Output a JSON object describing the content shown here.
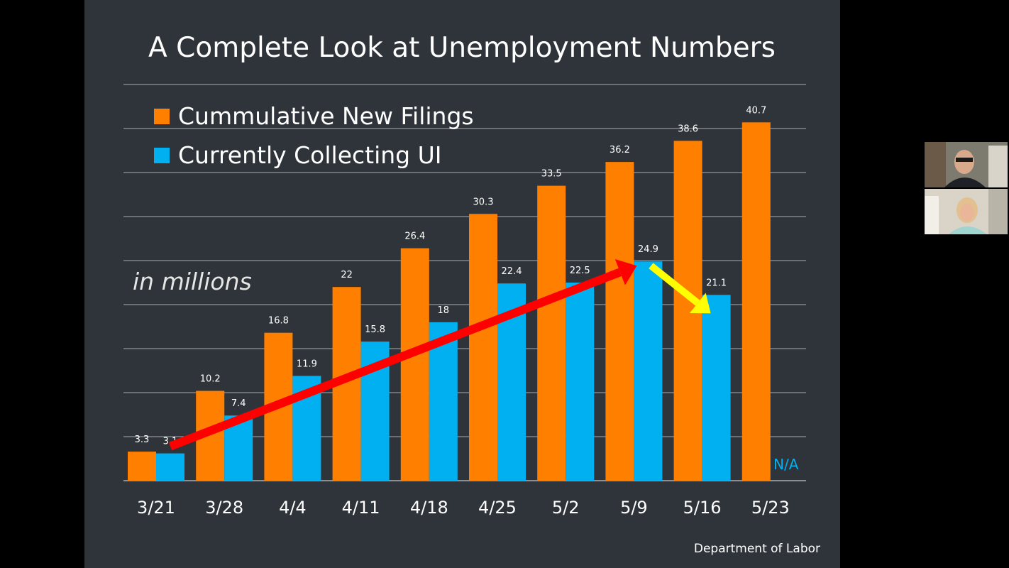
{
  "slide": {
    "source": "Department of Labor",
    "units_label": "in millions"
  },
  "colors": {
    "background": "#2e3439",
    "orange": "#ff7f00",
    "blue": "#00b0f0",
    "red_arrow": "#ff0000",
    "yellow_arrow": "#ffff00",
    "gridline": "#a9adb0",
    "text": "#ffffff"
  },
  "chart_data": {
    "type": "bar",
    "title": "A Complete Look at Unemployment Numbers",
    "xlabel": "",
    "ylabel": "",
    "ylim": [
      0,
      45
    ],
    "grid": true,
    "legend_position": "top-left",
    "categories": [
      "3/21",
      "3/28",
      "4/4",
      "4/11",
      "4/18",
      "4/25",
      "5/2",
      "5/9",
      "5/16",
      "5/23"
    ],
    "series": [
      {
        "name": "Cummulative New Filings",
        "color": "#ff7f00",
        "values": [
          3.3,
          10.2,
          16.8,
          22,
          26.4,
          30.3,
          33.5,
          36.2,
          38.6,
          40.7
        ],
        "labels": [
          "3.3",
          "10.2",
          "16.8",
          "22",
          "26.4",
          "30.3",
          "33.5",
          "36.2",
          "38.6",
          "40.7"
        ]
      },
      {
        "name": "Currently Collecting UI",
        "color": "#00b0f0",
        "values": [
          3.1,
          7.4,
          11.9,
          15.8,
          18,
          22.4,
          22.5,
          24.9,
          21.1,
          null
        ],
        "labels": [
          "3.1",
          "7.4",
          "11.9",
          "15.8",
          "18",
          "22.4",
          "22.5",
          "24.9",
          "21.1",
          "N/A"
        ]
      }
    ],
    "annotations": [
      {
        "type": "arrow",
        "color": "red",
        "from": {
          "category": "3/21",
          "value": 3.1
        },
        "to": {
          "category": "5/9",
          "value": 24.9
        }
      },
      {
        "type": "arrow",
        "color": "yellow",
        "from": {
          "category": "5/9",
          "value": 24.9
        },
        "to": {
          "category": "5/16",
          "value": 21.1
        }
      }
    ]
  }
}
